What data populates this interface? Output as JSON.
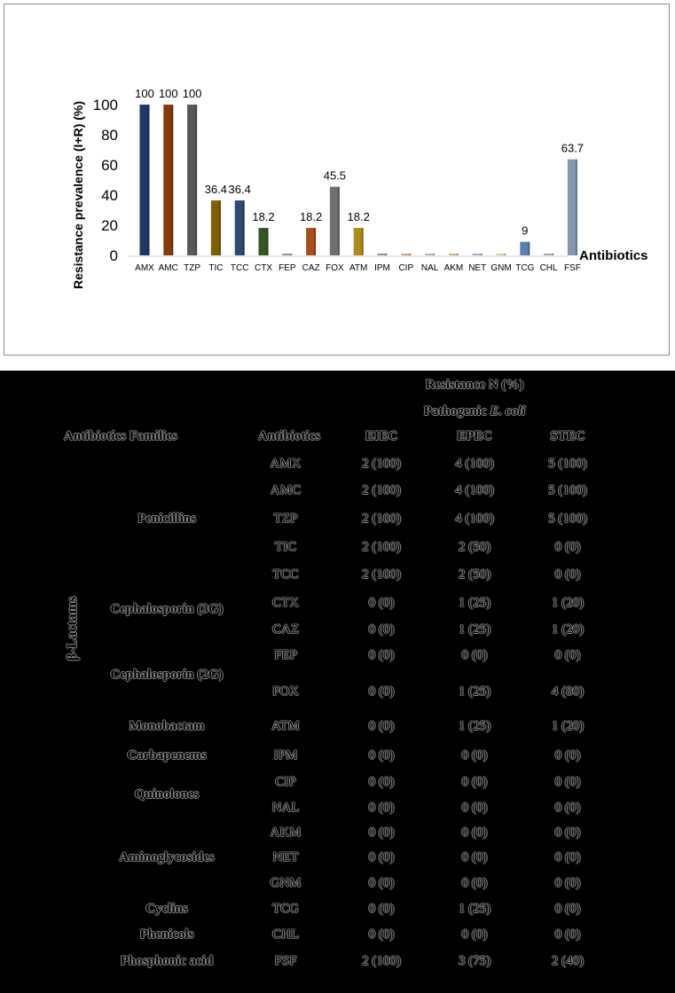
{
  "chart_data": {
    "type": "bar",
    "ylabel": "Resistance prevalence (I+R) (%)",
    "xlabel": "Antibiotics",
    "ylim": [
      0,
      100
    ],
    "yticks": [
      0,
      20,
      40,
      60,
      80,
      100
    ],
    "grid": false,
    "categories": [
      "AMX",
      "AMC",
      "TZP",
      "TIC",
      "TCC",
      "CTX",
      "FEP",
      "CAZ",
      "FOX",
      "ATM",
      "IPM",
      "CIP",
      "NAL",
      "AKM",
      "NET",
      "GNM",
      "TCG",
      "CHL",
      "FSF"
    ],
    "values": [
      100,
      100,
      100,
      36.4,
      36.4,
      18.2,
      0,
      18.2,
      45.5,
      18.2,
      0,
      0,
      0,
      0,
      0,
      0,
      9,
      0,
      63.7
    ],
    "data_labels": [
      "100",
      "100",
      "100",
      "36.4",
      "36.4",
      "18.2",
      "",
      "18.2",
      "45.5",
      "18.2",
      "",
      "",
      "",
      "",
      "",
      "",
      "9",
      "",
      "63.7"
    ],
    "colors": [
      "#1f3864",
      "#843c0c",
      "#595959",
      "#7f6000",
      "#2e4a6e",
      "#375623",
      "#8497b0",
      "#a5501c",
      "#6f6f6f",
      "#b08a1a",
      "#8497b0",
      "#c9a38a",
      "#b7b7b7",
      "#c9b37a",
      "#9fb3cf",
      "#c9d6a8",
      "#5b7fae",
      "#a9a9a9",
      "#8497b0"
    ]
  },
  "table": {
    "header_resistance": "Resistance N (%)",
    "header_pathogenic_prefix": "Pathogenic ",
    "header_pathogenic_italic": "E. coli",
    "col_family": "Antibiotics Families",
    "col_antibiotic": "Antibiotics",
    "col_eiec": "EIEC",
    "col_epec": "EPEC",
    "col_stec": "STEC",
    "beta_label": "β-Lactams",
    "rows": [
      {
        "family": "",
        "ab": "AMX",
        "eiec": "2 (100)",
        "epec": "4 (100)",
        "stec": "5 (100)"
      },
      {
        "family": "",
        "ab": "AMC",
        "eiec": "2 (100)",
        "epec": "4 (100)",
        "stec": "5 (100)"
      },
      {
        "family": "Penicillins",
        "ab": "TZP",
        "eiec": "2 (100)",
        "epec": "4 (100)",
        "stec": "5 (100)"
      },
      {
        "family": "",
        "ab": "TIC",
        "eiec": "2 (100)",
        "epec": "2 (50)",
        "stec": "0 (0)"
      },
      {
        "family": "",
        "ab": "TCC",
        "eiec": "2 (100)",
        "epec": "2 (50)",
        "stec": "0 (0)"
      },
      {
        "family": "",
        "ab": "CTX",
        "eiec": "0 (0)",
        "epec": "1 (25)",
        "stec": "1 (20)"
      },
      {
        "family": "Cephalosporin (3G)",
        "ab": "CAZ",
        "eiec": "0 (0)",
        "epec": "1 (25)",
        "stec": "1 (20)"
      },
      {
        "family": "",
        "ab": "FEP",
        "eiec": "0 (0)",
        "epec": "0 (0)",
        "stec": "0 (0)"
      },
      {
        "family": "Cephalosporin (2G)",
        "ab": "FOX",
        "eiec": "0 (0)",
        "epec": "1 (25)",
        "stec": "4 (80)"
      },
      {
        "family": "Monobactam",
        "ab": "ATM",
        "eiec": "0 (0)",
        "epec": "1 (25)",
        "stec": "1 (20)"
      },
      {
        "family": "Carbapenems",
        "ab": "IPM",
        "eiec": "0 (0)",
        "epec": "0 (0)",
        "stec": "0 (0)"
      },
      {
        "family": "Quinolones",
        "ab": "CIP",
        "eiec": "0 (0)",
        "epec": "0 (0)",
        "stec": "0 (0)"
      },
      {
        "family": "",
        "ab": "NAL",
        "eiec": "0 (0)",
        "epec": "0 (0)",
        "stec": "0 (0)"
      },
      {
        "family": "",
        "ab": "AKM",
        "eiec": "0 (0)",
        "epec": "0 (0)",
        "stec": "0 (0)"
      },
      {
        "family": "Aminoglycosides",
        "ab": "NET",
        "eiec": "0 (0)",
        "epec": "0 (0)",
        "stec": "0 (0)"
      },
      {
        "family": "",
        "ab": "GNM",
        "eiec": "0 (0)",
        "epec": "0 (0)",
        "stec": "0 (0)"
      },
      {
        "family": "Cyclins",
        "ab": "TCG",
        "eiec": "0 (0)",
        "epec": "1 (25)",
        "stec": "0 (0)"
      },
      {
        "family": "Phenicols",
        "ab": "CHL",
        "eiec": "0 (0)",
        "epec": "0 (0)",
        "stec": "0 (0)"
      },
      {
        "family": "Phosphonic acid",
        "ab": "FSF",
        "eiec": "2 (100)",
        "epec": "3 (75)",
        "stec": "2 (40)"
      }
    ]
  }
}
